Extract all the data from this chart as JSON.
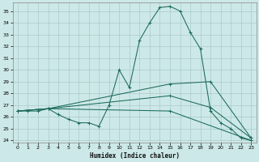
{
  "xlabel": "Humidex (Indice chaleur)",
  "background_color": "#cde8e8",
  "grid_color": "#aacaca",
  "line_color": "#1a6b5a",
  "xlim": [
    -0.5,
    23.5
  ],
  "ylim": [
    23.8,
    35.7
  ],
  "yticks": [
    24,
    25,
    26,
    27,
    28,
    29,
    30,
    31,
    32,
    33,
    34,
    35
  ],
  "xticks": [
    0,
    1,
    2,
    3,
    4,
    5,
    6,
    7,
    8,
    9,
    10,
    11,
    12,
    13,
    14,
    15,
    16,
    17,
    18,
    19,
    20,
    21,
    22,
    23
  ],
  "lines": [
    {
      "x": [
        0,
        1,
        2,
        3,
        4,
        5,
        6,
        7,
        8,
        9,
        10,
        11,
        12,
        13,
        14,
        15,
        16,
        17,
        18,
        19,
        20,
        21,
        22,
        23
      ],
      "y": [
        26.5,
        26.5,
        26.5,
        26.7,
        26.2,
        25.8,
        25.5,
        25.5,
        25.2,
        27.0,
        30.0,
        28.5,
        32.5,
        34.0,
        35.3,
        35.4,
        35.0,
        33.2,
        31.8,
        26.5,
        25.5,
        25.0,
        24.2,
        24.0
      ]
    },
    {
      "x": [
        0,
        3,
        15,
        19,
        23
      ],
      "y": [
        26.5,
        26.7,
        28.8,
        29.0,
        24.2
      ]
    },
    {
      "x": [
        0,
        3,
        15,
        19,
        23
      ],
      "y": [
        26.5,
        26.7,
        27.8,
        26.8,
        24.2
      ]
    },
    {
      "x": [
        0,
        3,
        15,
        23
      ],
      "y": [
        26.5,
        26.7,
        26.5,
        24.0
      ]
    }
  ]
}
